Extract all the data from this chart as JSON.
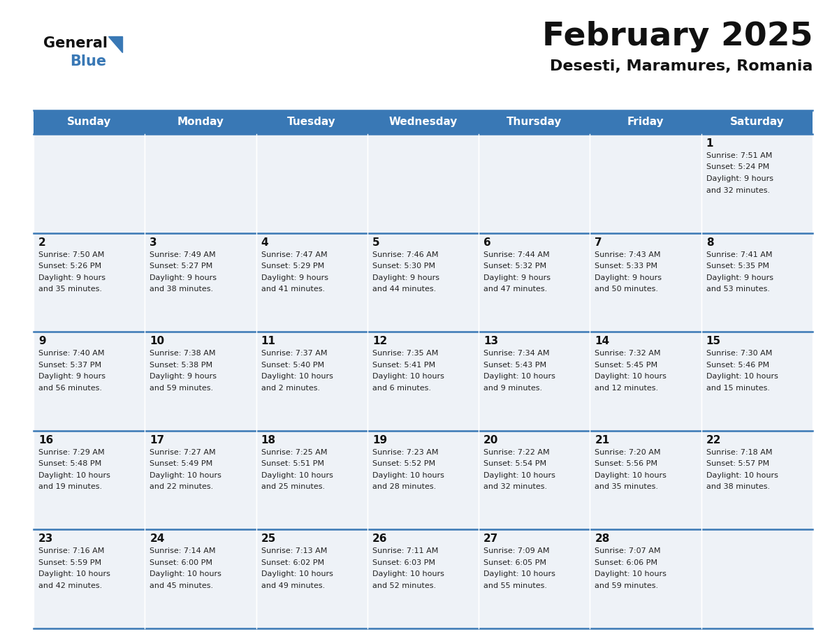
{
  "title": "February 2025",
  "subtitle": "Desesti, Maramures, Romania",
  "days_of_week": [
    "Sunday",
    "Monday",
    "Tuesday",
    "Wednesday",
    "Thursday",
    "Friday",
    "Saturday"
  ],
  "header_bg": "#3978b5",
  "header_text": "#ffffff",
  "cell_bg_odd": "#eef2f7",
  "cell_bg_even": "#ffffff",
  "divider_color": "#3978b5",
  "text_color": "#222222",
  "day_num_color": "#111111",
  "logo_general_color": "#111111",
  "logo_blue_color": "#3978b5",
  "title_fontsize": 34,
  "subtitle_fontsize": 16,
  "header_fontsize": 11,
  "day_num_fontsize": 11,
  "cell_fontsize": 8,
  "weeks": [
    [
      {
        "day": null,
        "sunrise": null,
        "sunset": null,
        "daylight": ""
      },
      {
        "day": null,
        "sunrise": null,
        "sunset": null,
        "daylight": ""
      },
      {
        "day": null,
        "sunrise": null,
        "sunset": null,
        "daylight": ""
      },
      {
        "day": null,
        "sunrise": null,
        "sunset": null,
        "daylight": ""
      },
      {
        "day": null,
        "sunrise": null,
        "sunset": null,
        "daylight": ""
      },
      {
        "day": null,
        "sunrise": null,
        "sunset": null,
        "daylight": ""
      },
      {
        "day": 1,
        "sunrise": "7:51 AM",
        "sunset": "5:24 PM",
        "daylight": "9 hours\nand 32 minutes."
      }
    ],
    [
      {
        "day": 2,
        "sunrise": "7:50 AM",
        "sunset": "5:26 PM",
        "daylight": "9 hours\nand 35 minutes."
      },
      {
        "day": 3,
        "sunrise": "7:49 AM",
        "sunset": "5:27 PM",
        "daylight": "9 hours\nand 38 minutes."
      },
      {
        "day": 4,
        "sunrise": "7:47 AM",
        "sunset": "5:29 PM",
        "daylight": "9 hours\nand 41 minutes."
      },
      {
        "day": 5,
        "sunrise": "7:46 AM",
        "sunset": "5:30 PM",
        "daylight": "9 hours\nand 44 minutes."
      },
      {
        "day": 6,
        "sunrise": "7:44 AM",
        "sunset": "5:32 PM",
        "daylight": "9 hours\nand 47 minutes."
      },
      {
        "day": 7,
        "sunrise": "7:43 AM",
        "sunset": "5:33 PM",
        "daylight": "9 hours\nand 50 minutes."
      },
      {
        "day": 8,
        "sunrise": "7:41 AM",
        "sunset": "5:35 PM",
        "daylight": "9 hours\nand 53 minutes."
      }
    ],
    [
      {
        "day": 9,
        "sunrise": "7:40 AM",
        "sunset": "5:37 PM",
        "daylight": "9 hours\nand 56 minutes."
      },
      {
        "day": 10,
        "sunrise": "7:38 AM",
        "sunset": "5:38 PM",
        "daylight": "9 hours\nand 59 minutes."
      },
      {
        "day": 11,
        "sunrise": "7:37 AM",
        "sunset": "5:40 PM",
        "daylight": "10 hours\nand 2 minutes."
      },
      {
        "day": 12,
        "sunrise": "7:35 AM",
        "sunset": "5:41 PM",
        "daylight": "10 hours\nand 6 minutes."
      },
      {
        "day": 13,
        "sunrise": "7:34 AM",
        "sunset": "5:43 PM",
        "daylight": "10 hours\nand 9 minutes."
      },
      {
        "day": 14,
        "sunrise": "7:32 AM",
        "sunset": "5:45 PM",
        "daylight": "10 hours\nand 12 minutes."
      },
      {
        "day": 15,
        "sunrise": "7:30 AM",
        "sunset": "5:46 PM",
        "daylight": "10 hours\nand 15 minutes."
      }
    ],
    [
      {
        "day": 16,
        "sunrise": "7:29 AM",
        "sunset": "5:48 PM",
        "daylight": "10 hours\nand 19 minutes."
      },
      {
        "day": 17,
        "sunrise": "7:27 AM",
        "sunset": "5:49 PM",
        "daylight": "10 hours\nand 22 minutes."
      },
      {
        "day": 18,
        "sunrise": "7:25 AM",
        "sunset": "5:51 PM",
        "daylight": "10 hours\nand 25 minutes."
      },
      {
        "day": 19,
        "sunrise": "7:23 AM",
        "sunset": "5:52 PM",
        "daylight": "10 hours\nand 28 minutes."
      },
      {
        "day": 20,
        "sunrise": "7:22 AM",
        "sunset": "5:54 PM",
        "daylight": "10 hours\nand 32 minutes."
      },
      {
        "day": 21,
        "sunrise": "7:20 AM",
        "sunset": "5:56 PM",
        "daylight": "10 hours\nand 35 minutes."
      },
      {
        "day": 22,
        "sunrise": "7:18 AM",
        "sunset": "5:57 PM",
        "daylight": "10 hours\nand 38 minutes."
      }
    ],
    [
      {
        "day": 23,
        "sunrise": "7:16 AM",
        "sunset": "5:59 PM",
        "daylight": "10 hours\nand 42 minutes."
      },
      {
        "day": 24,
        "sunrise": "7:14 AM",
        "sunset": "6:00 PM",
        "daylight": "10 hours\nand 45 minutes."
      },
      {
        "day": 25,
        "sunrise": "7:13 AM",
        "sunset": "6:02 PM",
        "daylight": "10 hours\nand 49 minutes."
      },
      {
        "day": 26,
        "sunrise": "7:11 AM",
        "sunset": "6:03 PM",
        "daylight": "10 hours\nand 52 minutes."
      },
      {
        "day": 27,
        "sunrise": "7:09 AM",
        "sunset": "6:05 PM",
        "daylight": "10 hours\nand 55 minutes."
      },
      {
        "day": 28,
        "sunrise": "7:07 AM",
        "sunset": "6:06 PM",
        "daylight": "10 hours\nand 59 minutes."
      },
      {
        "day": null,
        "sunrise": null,
        "sunset": null,
        "daylight": ""
      }
    ]
  ]
}
